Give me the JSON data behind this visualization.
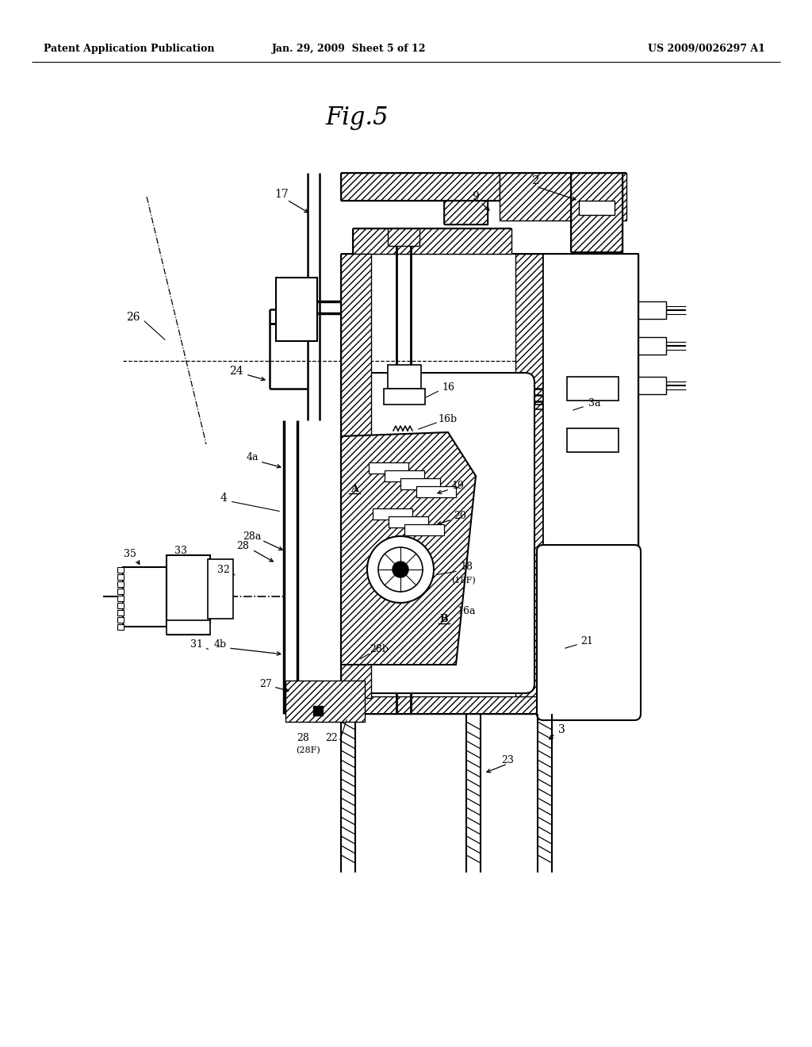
{
  "bg_color": "#ffffff",
  "header_left": "Patent Application Publication",
  "header_center": "Jan. 29, 2009  Sheet 5 of 12",
  "header_right": "US 2009/0026297 A1",
  "figure_title": "Fig.5"
}
